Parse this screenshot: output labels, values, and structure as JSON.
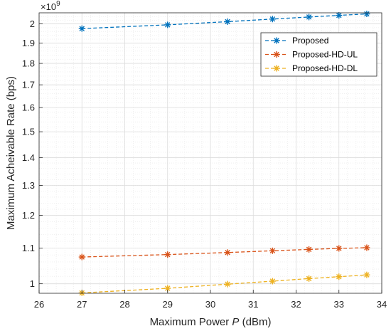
{
  "chart_data": {
    "type": "line",
    "xlabel_prefix": "Maximum Power ",
    "xlabel_var": "P",
    "xlabel_suffix": " (dBm)",
    "ylabel": "Maximum Acheivable Rate (bps)",
    "y_exponent_base": "×10",
    "y_exponent_power": "9",
    "xlim": [
      26,
      34
    ],
    "ylim": [
      0.975,
      2.06
    ],
    "y_scale": "log",
    "grid": true,
    "legend_position": "top-right",
    "x_ticks": [
      26,
      27,
      28,
      29,
      30,
      31,
      32,
      33,
      34
    ],
    "y_ticks": [
      1,
      1.1,
      1.2,
      1.3,
      1.4,
      1.5,
      1.6,
      1.7,
      1.8,
      1.9,
      2
    ],
    "y_tick_labels": [
      "1",
      "1.1",
      "1.2",
      "1.3",
      "1.4",
      "1.5",
      "1.6",
      "1.7",
      "1.8",
      "1.9",
      "2"
    ],
    "x": [
      27,
      29,
      30.4,
      31.45,
      32.3,
      33,
      33.65
    ],
    "series": [
      {
        "name": "Proposed",
        "color": "#0072BD",
        "values": [
          1.975,
          1.995,
          2.012,
          2.026,
          2.037,
          2.046,
          2.054
        ]
      },
      {
        "name": "Proposed-HD-UL",
        "color": "#D95319",
        "values": [
          1.074,
          1.081,
          1.087,
          1.092,
          1.096,
          1.099,
          1.101
        ]
      },
      {
        "name": "Proposed-HD-DL",
        "color": "#EDB120",
        "values": [
          0.976,
          0.988,
          0.999,
          1.007,
          1.014,
          1.019,
          1.024
        ]
      }
    ]
  }
}
